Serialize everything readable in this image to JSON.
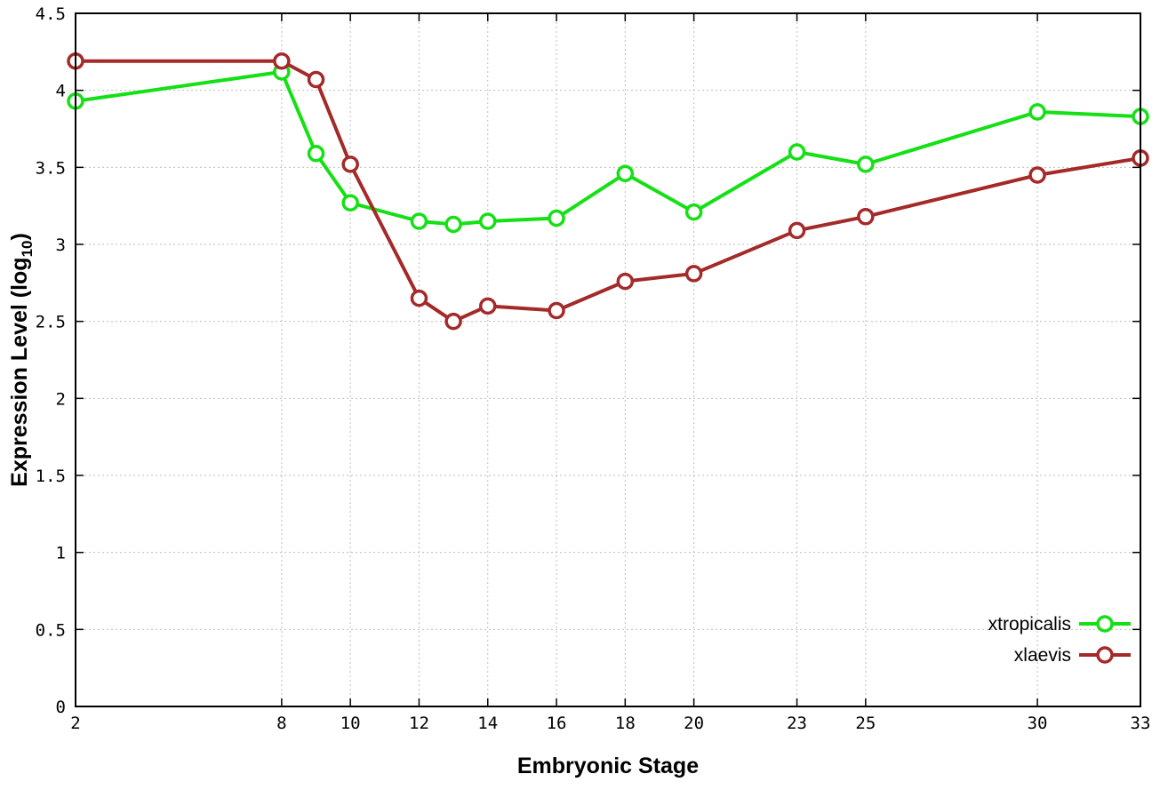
{
  "chart_data": {
    "type": "line",
    "title": "",
    "xlabel": "Embryonic Stage",
    "ylabel": "Expression Level (log10)",
    "ylabel_parts": {
      "main": "Expression Level (log",
      "sub": "10",
      "end": ")"
    },
    "xlim": [
      2,
      33
    ],
    "ylim": [
      0,
      4.5
    ],
    "xticks": [
      2,
      8,
      10,
      12,
      14,
      16,
      18,
      20,
      23,
      25,
      30,
      33
    ],
    "yticks": [
      0,
      0.5,
      1,
      1.5,
      2,
      2.5,
      3,
      3.5,
      4,
      4.5
    ],
    "grid": true,
    "legend_position": "bottom-right",
    "x": [
      2,
      8,
      9,
      10,
      12,
      13,
      14,
      16,
      18,
      20,
      23,
      25,
      30,
      33
    ],
    "series": [
      {
        "name": "xtropicalis",
        "color": "#15e015",
        "values": [
          3.93,
          4.12,
          3.59,
          3.27,
          3.15,
          3.13,
          3.15,
          3.17,
          3.46,
          3.21,
          3.6,
          3.52,
          3.86,
          3.83
        ]
      },
      {
        "name": "xlaevis",
        "color": "#a42a2a",
        "values": [
          4.19,
          4.19,
          4.07,
          3.52,
          2.65,
          2.5,
          2.6,
          2.57,
          2.76,
          2.81,
          3.09,
          3.18,
          3.45,
          3.56
        ]
      }
    ]
  }
}
